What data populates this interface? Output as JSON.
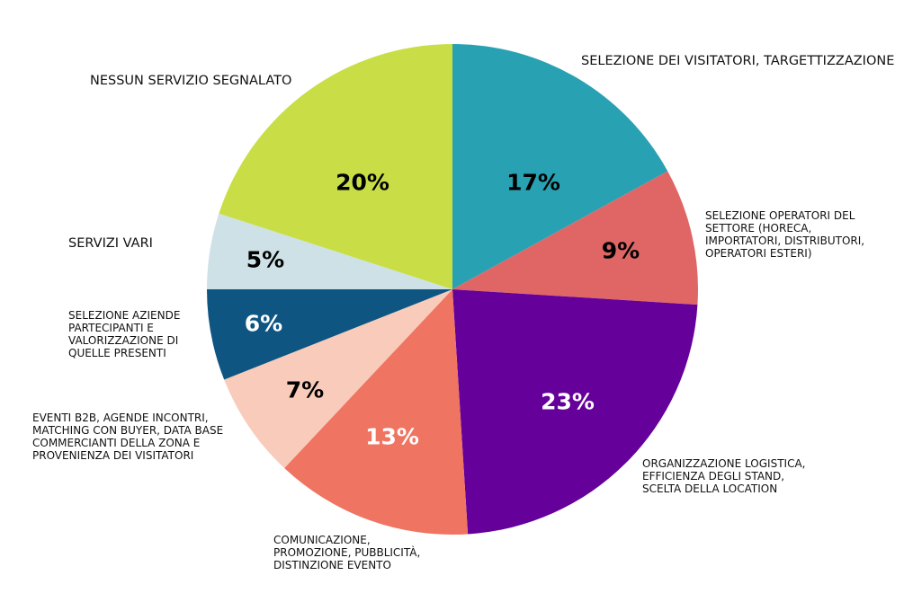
{
  "chart_data": {
    "type": "pie",
    "title": "",
    "start_angle_deg": 0,
    "direction": "clockwise",
    "center": [
      503,
      322
    ],
    "radius": 273,
    "slices": [
      {
        "label": "SELEZIONE DEI VISITATORI, TARGETTIZZAZIONE",
        "value": 17,
        "display": "17%",
        "color": "#28A2B3",
        "text_color": "#000000"
      },
      {
        "label": "SELEZIONE OPERATORI DEL SETTORE (HORECA, IMPORTATORI, DISTRIBUTORI, OPERATORI ESTERI)",
        "value": 9,
        "display": "9%",
        "color": "#E06666",
        "text_color": "#000000"
      },
      {
        "label": "ORGANIZZAZIONE LOGISTICA, EFFICIENZA DEGLI STAND, SCELTA DELLA LOCATION",
        "value": 23,
        "display": "23%",
        "color": "#66009A",
        "text_color": "#FFFFFF"
      },
      {
        "label": "COMUNICAZIONE, PROMOZIONE, PUBBLICITÀ, DISTINZIONE EVENTO",
        "value": 13,
        "display": "13%",
        "color": "#EF7461",
        "text_color": "#FFFFFF"
      },
      {
        "label": "EVENTI B2B, AGENDE INCONTRI, MATCHING CON BUYER, DATA BASE COMMERCIANTI DELLA ZONA E PROVENIENZA DEI VISITATORI",
        "value": 7,
        "display": "7%",
        "color": "#F8CBBA",
        "text_color": "#000000"
      },
      {
        "label": "SELEZIONE AZIENDE PARTECIPANTI E VALORIZZAZIONE DI QUELLE PRESENTI",
        "value": 6,
        "display": "6%",
        "color": "#0E5582",
        "text_color": "#FFFFFF"
      },
      {
        "label": "SERVIZI VARI",
        "value": 5,
        "display": "5%",
        "color": "#CEE1E6",
        "text_color": "#000000"
      },
      {
        "label": "NESSUN SERVIZIO SEGNALATO",
        "value": 20,
        "display": "20%",
        "color": "#C9DE46",
        "text_color": "#000000"
      }
    ],
    "pct_label_positions": [
      [
        593,
        203
      ],
      [
        690,
        279
      ],
      [
        631,
        447
      ],
      [
        436,
        486
      ],
      [
        339,
        434
      ],
      [
        293,
        360
      ],
      [
        295,
        289
      ],
      [
        403,
        203
      ]
    ],
    "legend": "none (direct labels)"
  },
  "labels": {
    "s0": "SELEZIONE DEI VISITATORI, TARGETTIZZAZIONE",
    "s1": "SELEZIONE OPERATORI DEL\nSETTORE (HORECA,\nIMPORTATORI, DISTRIBUTORI,\nOPERATORI ESTERI)",
    "s2": "ORGANIZZAZIONE LOGISTICA,\nEFFICIENZA DEGLI STAND,\nSCELTA DELLA LOCATION",
    "s3": "COMUNICAZIONE,\nPROMOZIONE, PUBBLICITÀ,\nDISTINZIONE EVENTO",
    "s4": "EVENTI B2B, AGENDE INCONTRI,\nMATCHING CON BUYER, DATA BASE\nCOMMERCIANTI DELLA ZONA E\nPROVENIENZA DEI VISITATORI",
    "s5": "SELEZIONE AZIENDE\nPARTECIPANTI E\nVALORIZZAZIONE DI\nQUELLE PRESENTI",
    "s6": "SERVIZI VARI",
    "s7": "NESSUN SERVIZIO SEGNALATO"
  }
}
